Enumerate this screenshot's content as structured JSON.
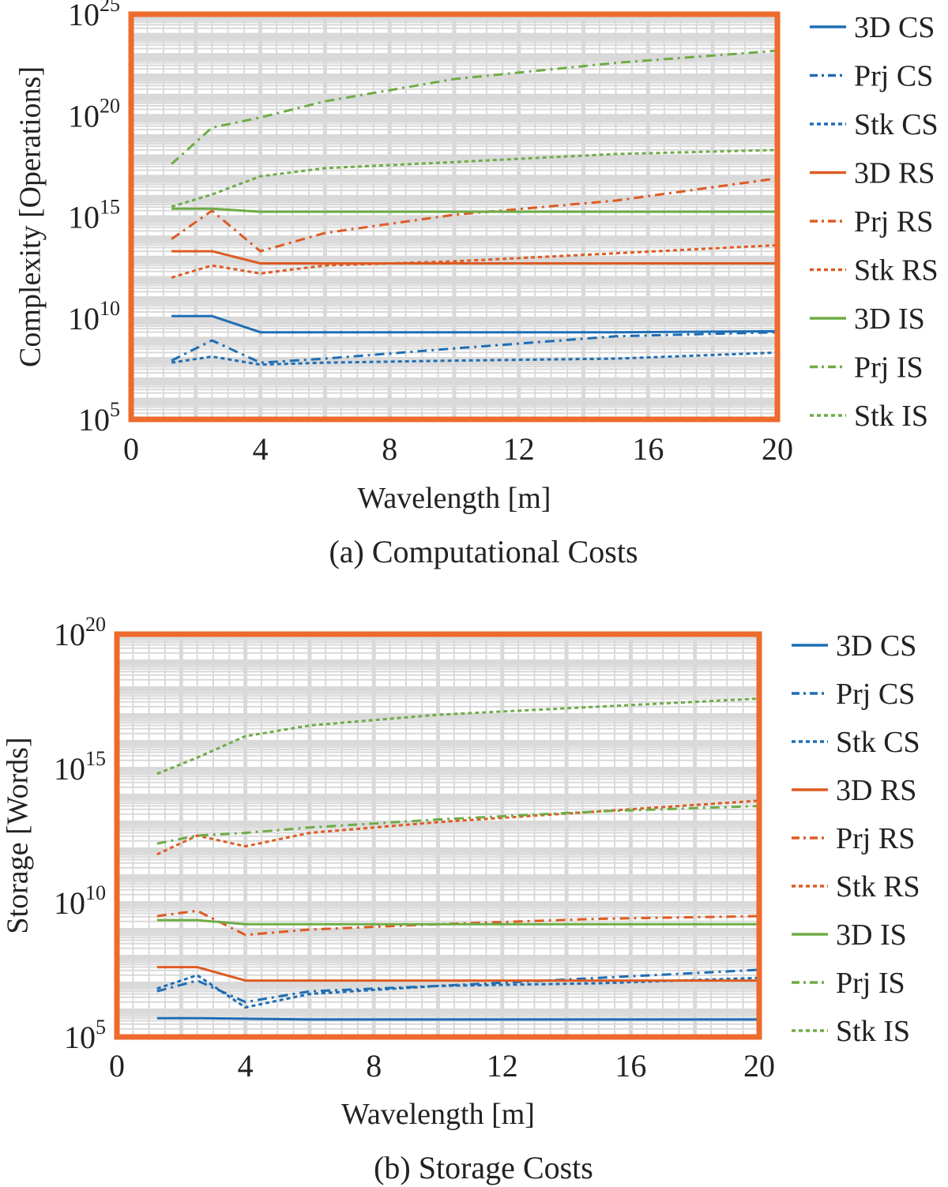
{
  "colors": {
    "cs": "#1f6eb4",
    "rs": "#de5b22",
    "is": "#6fac46",
    "frame": "#ec6b2d",
    "grid": "#d9d9d9",
    "text": "#222222"
  },
  "legend_entries": [
    {
      "label": "3D CS",
      "group": "cs",
      "style": "solid"
    },
    {
      "label": "Prj CS",
      "group": "cs",
      "style": "dashdot"
    },
    {
      "label": "Stk CS",
      "group": "cs",
      "style": "dotted"
    },
    {
      "label": "3D RS",
      "group": "rs",
      "style": "solid"
    },
    {
      "label": "Prj RS",
      "group": "rs",
      "style": "dashdot"
    },
    {
      "label": "Stk RS",
      "group": "rs",
      "style": "dotted"
    },
    {
      "label": "3D IS",
      "group": "is",
      "style": "solid"
    },
    {
      "label": "Prj IS",
      "group": "is",
      "style": "dashdot"
    },
    {
      "label": "Stk IS",
      "group": "is",
      "style": "dotted"
    }
  ],
  "chart_data": [
    {
      "type": "line",
      "caption": "(a) Computational Costs",
      "xlabel": "Wavelength [m]",
      "ylabel": "Complexity [Operations]",
      "xlim": [
        0,
        20
      ],
      "xticks": [
        "0",
        "4",
        "8",
        "12",
        "16",
        "20"
      ],
      "yscale": "log",
      "ylim_exp": [
        5,
        25
      ],
      "ytick_exps": [
        5,
        10,
        15,
        20,
        25
      ],
      "legend_position": "right",
      "x": [
        1.25,
        2.5,
        4,
        6,
        10,
        15,
        20
      ],
      "series": [
        {
          "name": "3D CS",
          "values_log10": [
            10.1,
            10.1,
            9.3,
            9.3,
            9.3,
            9.3,
            9.35
          ]
        },
        {
          "name": "Prj CS",
          "values_log10": [
            7.9,
            8.9,
            7.8,
            8.0,
            8.5,
            9.1,
            9.3
          ]
        },
        {
          "name": "Stk CS",
          "values_log10": [
            7.8,
            8.1,
            7.7,
            7.8,
            7.9,
            8.0,
            8.3
          ]
        },
        {
          "name": "3D RS",
          "values_log10": [
            13.3,
            13.3,
            12.7,
            12.7,
            12.7,
            12.7,
            12.7
          ]
        },
        {
          "name": "Prj RS",
          "values_log10": [
            13.9,
            15.3,
            13.3,
            14.2,
            15.1,
            15.8,
            16.9
          ]
        },
        {
          "name": "Stk RS",
          "values_log10": [
            12.0,
            12.6,
            12.2,
            12.6,
            12.8,
            13.2,
            13.6
          ]
        },
        {
          "name": "3D IS",
          "values_log10": [
            15.4,
            15.4,
            15.25,
            15.25,
            15.25,
            15.25,
            15.25
          ]
        },
        {
          "name": "Prj IS",
          "values_log10": [
            17.6,
            19.4,
            19.9,
            20.7,
            21.8,
            22.6,
            23.2
          ]
        },
        {
          "name": "Stk IS",
          "values_log10": [
            15.5,
            16.1,
            17.0,
            17.4,
            17.7,
            18.1,
            18.3
          ]
        }
      ]
    },
    {
      "type": "line",
      "caption": "(b) Storage Costs",
      "xlabel": "Wavelength [m]",
      "ylabel": "Storage [Words]",
      "xlim": [
        0,
        20
      ],
      "xticks": [
        "0",
        "4",
        "8",
        "12",
        "16",
        "20"
      ],
      "yscale": "log",
      "ylim_exp": [
        5,
        20
      ],
      "ytick_exps": [
        5,
        10,
        15,
        20
      ],
      "legend_position": "right",
      "x": [
        1.25,
        2.5,
        4,
        6,
        10,
        15,
        20
      ],
      "series": [
        {
          "name": "3D CS",
          "values_log10": [
            5.7,
            5.7,
            5.68,
            5.65,
            5.65,
            5.65,
            5.65
          ]
        },
        {
          "name": "Prj CS",
          "values_log10": [
            6.7,
            7.1,
            6.3,
            6.7,
            6.9,
            7.2,
            7.5
          ]
        },
        {
          "name": "Stk CS",
          "values_log10": [
            6.8,
            7.3,
            6.1,
            6.6,
            6.9,
            7.0,
            7.2
          ]
        },
        {
          "name": "3D RS",
          "values_log10": [
            7.6,
            7.6,
            7.1,
            7.1,
            7.1,
            7.1,
            7.1
          ]
        },
        {
          "name": "Prj RS",
          "values_log10": [
            9.5,
            9.7,
            8.8,
            9.0,
            9.2,
            9.4,
            9.5
          ]
        },
        {
          "name": "Stk RS",
          "values_log10": [
            11.8,
            12.5,
            12.1,
            12.6,
            13.0,
            13.4,
            13.8
          ]
        },
        {
          "name": "3D IS",
          "values_log10": [
            9.35,
            9.35,
            9.2,
            9.2,
            9.2,
            9.2,
            9.2
          ]
        },
        {
          "name": "Prj IS",
          "values_log10": [
            12.2,
            12.5,
            12.6,
            12.8,
            13.1,
            13.4,
            13.6
          ]
        },
        {
          "name": "Stk IS",
          "values_log10": [
            14.8,
            15.4,
            16.2,
            16.6,
            17.0,
            17.3,
            17.6
          ]
        }
      ]
    }
  ]
}
